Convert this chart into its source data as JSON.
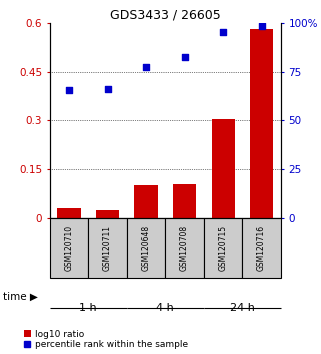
{
  "title": "GDS3433 / 26605",
  "samples": [
    "GSM120710",
    "GSM120711",
    "GSM120648",
    "GSM120708",
    "GSM120715",
    "GSM120716"
  ],
  "log10_ratio": [
    0.03,
    0.025,
    0.1,
    0.105,
    0.305,
    0.582
  ],
  "percentile_rank": [
    0.395,
    0.398,
    0.463,
    0.495,
    0.572,
    0.592
  ],
  "ylim_left": [
    0,
    0.6
  ],
  "ylim_right": [
    0,
    100
  ],
  "yticks_left": [
    0,
    0.15,
    0.3,
    0.45,
    0.6
  ],
  "ytick_labels_left": [
    "0",
    "0.15",
    "0.3",
    "0.45",
    "0.6"
  ],
  "yticks_right": [
    0,
    25,
    50,
    75,
    100
  ],
  "ytick_labels_right": [
    "0",
    "25",
    "50",
    "75",
    "100%"
  ],
  "bar_color": "#cc0000",
  "scatter_color": "#0000cc",
  "time_groups": [
    {
      "label": "1 h",
      "start": 0,
      "end": 2,
      "color": "#ccffcc"
    },
    {
      "label": "4 h",
      "start": 2,
      "end": 4,
      "color": "#88ee88"
    },
    {
      "label": "24 h",
      "start": 4,
      "end": 6,
      "color": "#44cc44"
    }
  ],
  "legend_bar": "log10 ratio",
  "legend_scatter": "percentile rank within the sample",
  "grid_yticks": [
    0.15,
    0.3,
    0.45
  ],
  "sample_box_color": "#cccccc"
}
